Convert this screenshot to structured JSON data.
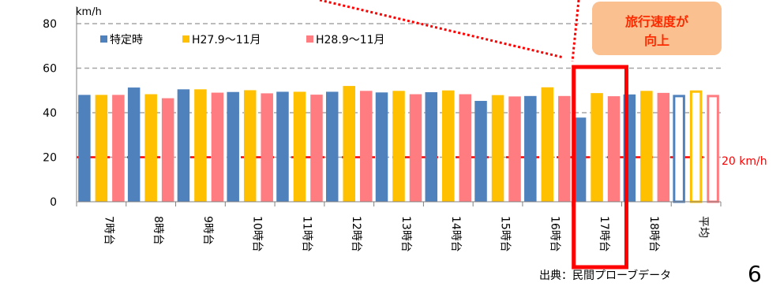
{
  "chart_data": {
    "type": "bar",
    "ylabel": "km/h",
    "ylim": [
      0,
      80
    ],
    "y_ticks": [
      0,
      20,
      40,
      60,
      80
    ],
    "grid": "horizontal dashed",
    "legend_position": "top-left",
    "categories": [
      "7時台",
      "8時台",
      "9時台",
      "10時台",
      "11時台",
      "12時台",
      "13時台",
      "14時台",
      "15時台",
      "16時台",
      "17時台",
      "18時台",
      "平均"
    ],
    "series": [
      {
        "name": "特定時",
        "color": "#4f81bd",
        "values": [
          48,
          51.3,
          50.5,
          49.3,
          49.4,
          49.4,
          49.1,
          49.2,
          45.3,
          47.5,
          37.8,
          48.2,
          48
        ]
      },
      {
        "name": "H27.9～11月",
        "color": "#ffc000",
        "values": [
          48,
          48.3,
          50.5,
          50.1,
          49.4,
          52,
          49.8,
          50,
          47.9,
          51.4,
          48.8,
          49.8,
          50
        ]
      },
      {
        "name": "H28.9～11月",
        "color": "#ff7c80",
        "values": [
          48,
          46.5,
          49,
          48.7,
          48.1,
          49.8,
          48.3,
          48.3,
          47.3,
          47.5,
          47.4,
          48.9,
          48
        ]
      }
    ],
    "average_index": 12,
    "reference_line": {
      "value": 20,
      "label": "20 km/h",
      "color": "#ff0000"
    },
    "highlight_index": 10,
    "highlight_color": "#ff0000",
    "annotation": {
      "text_line1": "旅行速度が",
      "text_line2": "向上",
      "fill": "#fac090",
      "text_color": "#ff2a00"
    }
  },
  "source": "出典：民間プローブデータ",
  "page_number": "6"
}
